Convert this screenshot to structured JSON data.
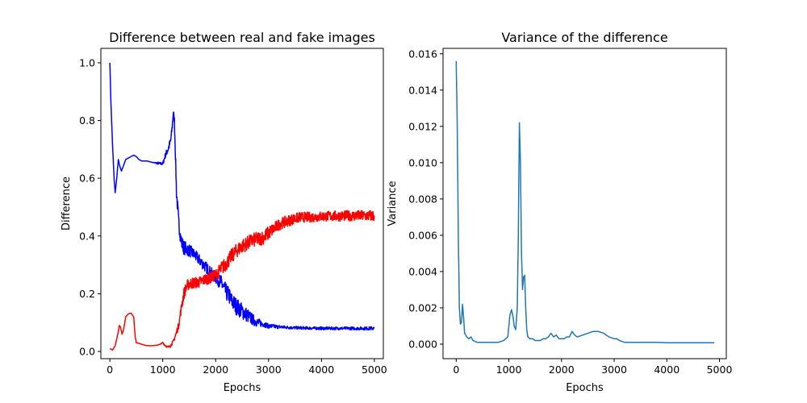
{
  "chart_data": [
    {
      "type": "line",
      "title": "Difference between real and fake images",
      "xlabel": "Epochs",
      "ylabel": "Difference",
      "xlim": [
        -170,
        5170
      ],
      "ylim": [
        -0.025,
        1.05
      ],
      "xticks": [
        0,
        1000,
        2000,
        3000,
        4000,
        5000
      ],
      "yticks": [
        0.0,
        0.2,
        0.4,
        0.6,
        0.8,
        1.0
      ],
      "xtick_labels": [
        "0",
        "1000",
        "2000",
        "3000",
        "4000",
        "5000"
      ],
      "ytick_labels": [
        "0.0",
        "0.2",
        "0.4",
        "0.6",
        "0.8",
        "1.0"
      ],
      "grid": false,
      "series": [
        {
          "color": "#0000ff",
          "x": [
            0,
            20,
            50,
            80,
            100,
            130,
            160,
            190,
            220,
            260,
            300,
            350,
            400,
            450,
            500,
            550,
            600,
            700,
            800,
            900,
            1000,
            1050,
            1100,
            1150,
            1180,
            1200,
            1220,
            1240,
            1260,
            1300,
            1350,
            1400,
            1500,
            1600,
            1700,
            1800,
            1900,
            2000,
            2100,
            2150,
            2200,
            2250,
            2300,
            2400,
            2500,
            2600,
            2700,
            2800,
            2900,
            3000,
            3200,
            3500,
            4000,
            4500,
            5000
          ],
          "y": [
            1.0,
            0.86,
            0.72,
            0.6,
            0.55,
            0.6,
            0.665,
            0.64,
            0.625,
            0.645,
            0.665,
            0.67,
            0.675,
            0.68,
            0.675,
            0.665,
            0.66,
            0.66,
            0.655,
            0.652,
            0.65,
            0.68,
            0.7,
            0.73,
            0.78,
            0.83,
            0.8,
            0.68,
            0.55,
            0.45,
            0.38,
            0.36,
            0.35,
            0.335,
            0.315,
            0.295,
            0.275,
            0.255,
            0.24,
            0.22,
            0.205,
            0.195,
            0.175,
            0.155,
            0.14,
            0.125,
            0.11,
            0.1,
            0.095,
            0.088,
            0.085,
            0.082,
            0.08,
            0.08,
            0.08
          ],
          "noise": [
            0,
            0,
            0,
            0,
            0,
            0,
            0,
            0,
            0,
            0,
            0,
            0,
            0,
            0,
            0,
            0,
            0,
            0,
            0,
            0.004,
            0.005,
            0.01,
            0.012,
            0.015,
            0.012,
            0.01,
            0.015,
            0.02,
            0.025,
            0.025,
            0.025,
            0.025,
            0.022,
            0.02,
            0.02,
            0.02,
            0.02,
            0.02,
            0.025,
            0.03,
            0.03,
            0.03,
            0.03,
            0.03,
            0.028,
            0.025,
            0.02,
            0.015,
            0.01,
            0.008,
            0.006,
            0.005,
            0.005,
            0.005,
            0.006
          ]
        },
        {
          "color": "#ff0000",
          "x": [
            0,
            50,
            100,
            150,
            180,
            200,
            230,
            260,
            300,
            350,
            400,
            450,
            480,
            500,
            550,
            600,
            700,
            800,
            900,
            950,
            1000,
            1050,
            1100,
            1150,
            1200,
            1250,
            1300,
            1350,
            1400,
            1450,
            1500,
            1600,
            1700,
            1800,
            1900,
            2000,
            2100,
            2200,
            2300,
            2400,
            2500,
            2600,
            2700,
            2800,
            2900,
            3000,
            3100,
            3200,
            3400,
            3600,
            3800,
            4000,
            4500,
            5000
          ],
          "y": [
            0.01,
            0.005,
            0.02,
            0.06,
            0.09,
            0.085,
            0.06,
            0.075,
            0.12,
            0.13,
            0.133,
            0.12,
            0.05,
            0.03,
            0.028,
            0.025,
            0.02,
            0.02,
            0.022,
            0.025,
            0.03,
            0.02,
            0.015,
            0.02,
            0.035,
            0.06,
            0.09,
            0.15,
            0.2,
            0.225,
            0.235,
            0.238,
            0.24,
            0.25,
            0.255,
            0.265,
            0.285,
            0.305,
            0.33,
            0.35,
            0.365,
            0.375,
            0.385,
            0.39,
            0.395,
            0.41,
            0.425,
            0.44,
            0.455,
            0.465,
            0.465,
            0.468,
            0.47,
            0.47
          ],
          "noise": [
            0,
            0,
            0,
            0,
            0,
            0,
            0,
            0,
            0,
            0,
            0,
            0,
            0,
            0,
            0,
            0,
            0,
            0,
            0,
            0,
            0.003,
            0.003,
            0.003,
            0.005,
            0.005,
            0.01,
            0.012,
            0.015,
            0.02,
            0.02,
            0.02,
            0.02,
            0.02,
            0.02,
            0.02,
            0.02,
            0.025,
            0.025,
            0.025,
            0.025,
            0.025,
            0.025,
            0.025,
            0.025,
            0.025,
            0.025,
            0.022,
            0.02,
            0.02,
            0.018,
            0.018,
            0.018,
            0.018,
            0.02
          ]
        }
      ]
    },
    {
      "type": "line",
      "title": "Variance of the difference",
      "xlabel": "Epochs",
      "ylabel": "Variance",
      "xlim": [
        -250,
        5130
      ],
      "ylim": [
        -0.0008,
        0.0163
      ],
      "xticks": [
        0,
        1000,
        2000,
        3000,
        4000,
        5000
      ],
      "yticks": [
        0.0,
        0.002,
        0.004,
        0.006,
        0.008,
        0.01,
        0.012,
        0.014,
        0.016
      ],
      "xtick_labels": [
        "0",
        "1000",
        "2000",
        "3000",
        "4000",
        "5000"
      ],
      "ytick_labels": [
        "0.000",
        "0.002",
        "0.004",
        "0.006",
        "0.008",
        "0.010",
        "0.012",
        "0.014",
        "0.016"
      ],
      "grid": false,
      "series": [
        {
          "color": "#1f77b4",
          "x": [
            0,
            20,
            40,
            60,
            80,
            100,
            120,
            140,
            160,
            200,
            240,
            280,
            320,
            400,
            500,
            600,
            700,
            800,
            900,
            980,
            1020,
            1050,
            1080,
            1100,
            1130,
            1160,
            1180,
            1200,
            1220,
            1240,
            1260,
            1280,
            1300,
            1320,
            1340,
            1360,
            1400,
            1450,
            1500,
            1550,
            1600,
            1650,
            1700,
            1750,
            1800,
            1850,
            1900,
            1950,
            2000,
            2050,
            2100,
            2150,
            2200,
            2250,
            2300,
            2400,
            2500,
            2600,
            2700,
            2800,
            2900,
            3000,
            3050,
            3100,
            3200,
            3400,
            3600,
            3800,
            4000,
            4200,
            4400,
            4600,
            4800,
            4900
          ],
          "y": [
            0.0156,
            0.012,
            0.006,
            0.002,
            0.0011,
            0.0012,
            0.0022,
            0.0015,
            0.0006,
            0.0004,
            0.0003,
            0.0004,
            0.0002,
            0.0001,
            0.0001,
            0.0001,
            0.0001,
            0.0001,
            0.0002,
            0.0004,
            0.0016,
            0.0019,
            0.0015,
            0.001,
            0.0008,
            0.002,
            0.006,
            0.0122,
            0.01,
            0.005,
            0.003,
            0.0037,
            0.0038,
            0.002,
            0.0008,
            0.0004,
            0.0003,
            0.0003,
            0.0002,
            0.0002,
            0.0002,
            0.0003,
            0.0003,
            0.0004,
            0.0006,
            0.0004,
            0.0005,
            0.0003,
            0.0003,
            0.0003,
            0.0004,
            0.0004,
            0.0007,
            0.0005,
            0.0004,
            0.0005,
            0.0006,
            0.0007,
            0.0007,
            0.0006,
            0.0004,
            0.0003,
            0.0003,
            0.0002,
            0.0001,
            0.0001,
            0.0001,
            0.0001,
            8e-05,
            8e-05,
            8e-05,
            8e-05,
            8e-05,
            8e-05
          ],
          "noise": [
            0,
            0,
            0,
            0,
            0,
            0,
            0,
            0,
            0,
            0,
            0,
            0,
            0,
            0,
            0,
            0,
            0,
            0,
            0,
            0,
            0,
            0,
            0,
            0,
            0,
            0,
            0,
            0,
            0,
            0,
            0,
            0,
            0,
            0,
            0,
            0,
            0,
            0,
            0,
            0,
            0,
            0,
            0,
            0,
            0,
            0,
            0,
            0,
            0,
            0,
            0,
            0,
            0,
            0,
            0,
            0,
            0,
            0,
            0,
            0,
            0,
            0,
            0,
            0,
            0,
            0,
            0,
            0,
            0,
            0,
            0,
            0,
            0,
            0
          ]
        }
      ]
    }
  ]
}
